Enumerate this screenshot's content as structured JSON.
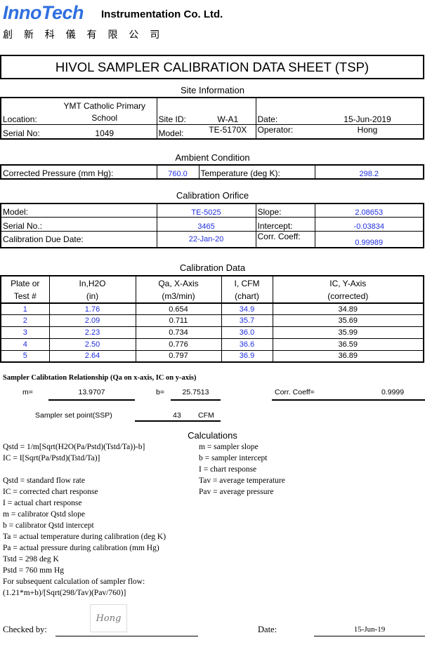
{
  "header": {
    "logo": "InnoTech",
    "company": "Instrumentation Co. Ltd.",
    "chinese_name": "創 新 科 儀 有 限 公 司",
    "logo_color": "#2f6fe0"
  },
  "title": "HIVOL SAMPLER CALIBRATION  DATA SHEET (TSP)",
  "site": {
    "heading": "Site Information",
    "location_label": "Location:",
    "location_value": "YMT Catholic Primary School",
    "site_id_label": "Site ID:",
    "site_id_value": "W-A1",
    "date_label": "Date:",
    "date_value": "15-Jun-2019",
    "serial_label": "Serial No:",
    "serial_value": "1049",
    "model_label": "Model:",
    "model_value": "TE-5170X",
    "operator_label": "Operator:",
    "operator_value": "Hong"
  },
  "ambient": {
    "heading": "Ambient Condition",
    "pressure_label": "Corrected Pressure (mm Hg):",
    "pressure_value": "760.0",
    "temperature_label": "Temperature (deg K):",
    "temperature_value": "298.2"
  },
  "orifice": {
    "heading": "Calibration Orifice",
    "model_label": "Model:",
    "model_value": "TE-5025",
    "slope_label": "Slope:",
    "slope_value": "2.08653",
    "serial_label": "Serial No.:",
    "serial_value": "3465",
    "intercept_label": "Intercept:",
    "intercept_value": "-0.03834",
    "due_label": "Calibration Due Date:",
    "due_value": "22-Jan-20",
    "corr_label": "Corr. Coeff:",
    "corr_value": "0.99989"
  },
  "calibration": {
    "heading": "Calibration Data",
    "columns": [
      {
        "l1": "Plate or",
        "l2": "Test #"
      },
      {
        "l1": "In,H2O",
        "l2": "(in)"
      },
      {
        "l1": "Qa, X-Axis",
        "l2": "(m3/min)"
      },
      {
        "l1": "I, CFM",
        "l2": "(chart)"
      },
      {
        "l1": "IC, Y-Axis",
        "l2": "(corrected)"
      }
    ],
    "rows": [
      [
        "1",
        "1.76",
        "0.654",
        "34.9",
        "34.89"
      ],
      [
        "2",
        "2.09",
        "0.711",
        "35.7",
        "35.69"
      ],
      [
        "3",
        "2.23",
        "0.734",
        "36.0",
        "35.99"
      ],
      [
        "4",
        "2.50",
        "0.776",
        "36.6",
        "36.59"
      ],
      [
        "5",
        "2.64",
        "0.797",
        "36.9",
        "36.89"
      ]
    ]
  },
  "relationship": {
    "heading": "Sampler Calibtation Relationship (Qa on x-axis, IC on y-axis)",
    "m_label": "m=",
    "m_value": "13.9707",
    "b_label": "b=",
    "b_value": "25.7513",
    "corr_label": "Corr. Coeff=",
    "corr_value": "0.9999",
    "ssp_label": "Sampler set point(SSP)",
    "ssp_value": "43",
    "ssp_unit": "CFM"
  },
  "calculations": {
    "heading": "Calculations",
    "left": [
      "Qstd = 1/m[Sqrt(H2O(Pa/Pstd)(Tstd/Ta))-b]",
      "IC = I[Sqrt(Pa/Pstd)(Tstd/Ta)]",
      "",
      "Qstd = standard flow rate",
      "IC = corrected chart response",
      "I = actual chart response",
      "m = calibrator Qstd slope",
      "b = calibrator Qstd intercept",
      "Ta = actual temperature during calibration (deg K)",
      "Pa = actual pressure during calibration (mm Hg)",
      "Tstd = 298 deg K",
      "Pstd = 760 mm Hg",
      "For subsequent calculation of sampler flow:",
      "(1.21*m+b)/[Sqrt(298/Tav)(Pav/760)]"
    ],
    "right": [
      "m  = sampler slope",
      "b   = sampler intercept",
      "I   = chart response",
      "Tav = average temperature",
      "Pav = average pressure"
    ]
  },
  "footer": {
    "checked_label": "Checked by:",
    "signature": "Hong",
    "date_label": "Date:",
    "date_value": "15-Jun-19"
  }
}
